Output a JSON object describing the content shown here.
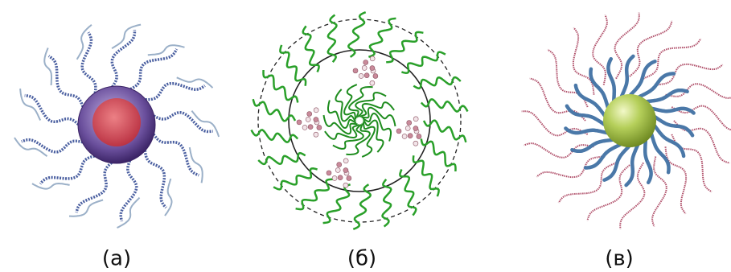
{
  "labels": [
    "(а)",
    "(б)",
    "(в)"
  ]
}
